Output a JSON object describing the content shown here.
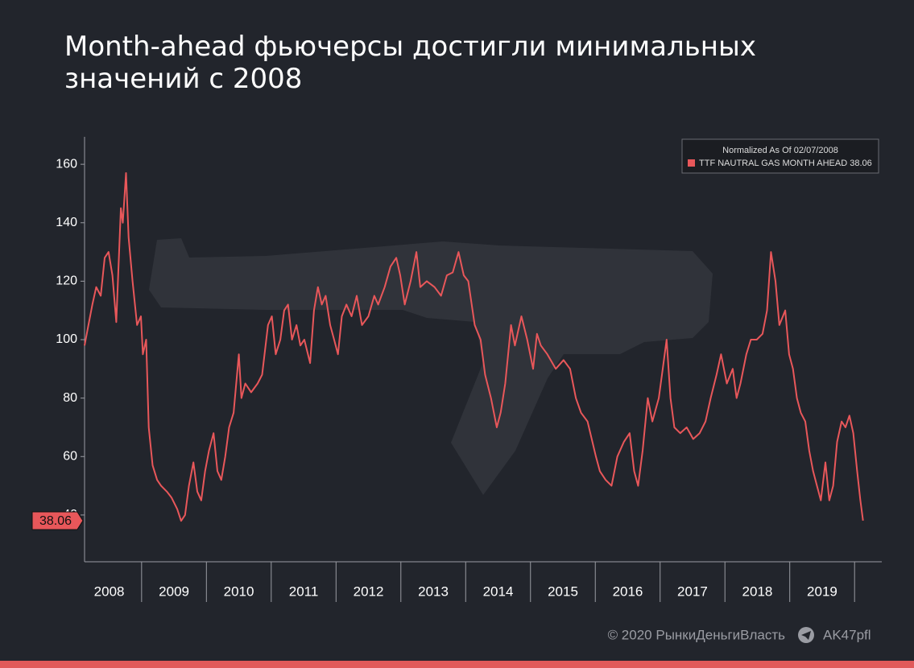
{
  "chart_data": {
    "type": "line",
    "title": "Month-ahead фьючерсы достигли минимальных значений с 2008",
    "legend_title": "Normalized As Of 02/07/2008",
    "legend": "upper right",
    "x": [
      2008.12,
      2008.18,
      2008.24,
      2008.3,
      2008.37,
      2008.43,
      2008.49,
      2008.55,
      2008.61,
      2008.68,
      2008.71,
      2008.76,
      2008.8,
      2008.86,
      2008.93,
      2008.99,
      2009.02,
      2009.07,
      2009.11,
      2009.17,
      2009.24,
      2009.3,
      2009.39,
      2009.46,
      2009.55,
      2009.61,
      2009.67,
      2009.73,
      2009.8,
      2009.86,
      2009.92,
      2009.98,
      2010.04,
      2010.11,
      2010.17,
      2010.23,
      2010.29,
      2010.35,
      2010.42,
      2010.5,
      2010.54,
      2010.6,
      2010.69,
      2010.79,
      2010.86,
      2010.95,
      2011.01,
      2011.07,
      2011.14,
      2011.2,
      2011.26,
      2011.32,
      2011.39,
      2011.45,
      2011.51,
      2011.6,
      2011.66,
      2011.72,
      2011.78,
      2011.84,
      2011.91,
      2011.97,
      2012.03,
      2012.09,
      2012.16,
      2012.24,
      2012.32,
      2012.4,
      2012.5,
      2012.59,
      2012.65,
      2012.75,
      2012.84,
      2012.93,
      2012.99,
      2013.06,
      2013.15,
      2013.24,
      2013.3,
      2013.4,
      2013.52,
      2013.62,
      2013.71,
      2013.8,
      2013.89,
      2013.97,
      2014.04,
      2014.14,
      2014.23,
      2014.3,
      2014.39,
      2014.48,
      2014.54,
      2014.61,
      2014.7,
      2014.76,
      2014.86,
      2014.95,
      2015.04,
      2015.1,
      2015.16,
      2015.26,
      2015.39,
      2015.51,
      2015.61,
      2015.7,
      2015.78,
      2015.88,
      2016.01,
      2016.07,
      2016.16,
      2016.25,
      2016.34,
      2016.44,
      2016.53,
      2016.6,
      2016.66,
      2016.73,
      2016.81,
      2016.88,
      2016.98,
      2017.04,
      2017.1,
      2017.16,
      2017.22,
      2017.31,
      2017.41,
      2017.51,
      2017.61,
      2017.7,
      2017.78,
      2017.87,
      2017.94,
      2018.03,
      2018.12,
      2018.18,
      2018.24,
      2018.33,
      2018.4,
      2018.49,
      2018.58,
      2018.65,
      2018.71,
      2018.78,
      2018.84,
      2018.93,
      2018.99,
      2019.05,
      2019.11,
      2019.17,
      2019.24,
      2019.3,
      2019.36,
      2019.42,
      2019.48,
      2019.55,
      2019.61,
      2019.67,
      2019.73,
      2019.8,
      2019.86,
      2019.92,
      2019.98,
      2020.04,
      2020.09,
      2020.13
    ],
    "series": [
      {
        "name": "TTF NAUTRAL GAS MONTH AHEAD 38.06",
        "color": "#e8575a",
        "values": [
          98,
          105,
          112,
          118,
          115,
          128,
          130,
          122,
          106,
          145,
          140,
          157,
          135,
          120,
          105,
          108,
          95,
          100,
          70,
          57,
          52,
          50,
          48,
          46,
          42,
          38,
          40,
          50,
          58,
          48,
          45,
          55,
          62,
          68,
          55,
          52,
          60,
          70,
          75,
          95,
          80,
          85,
          82,
          85,
          88,
          105,
          108,
          95,
          100,
          110,
          112,
          100,
          105,
          98,
          100,
          92,
          110,
          118,
          112,
          115,
          105,
          100,
          95,
          108,
          112,
          108,
          115,
          105,
          108,
          115,
          112,
          118,
          125,
          128,
          122,
          112,
          120,
          130,
          118,
          120,
          118,
          115,
          122,
          123,
          130,
          122,
          120,
          105,
          100,
          88,
          80,
          70,
          75,
          85,
          105,
          98,
          108,
          100,
          90,
          102,
          98,
          95,
          90,
          93,
          90,
          80,
          75,
          72,
          60,
          55,
          52,
          50,
          60,
          65,
          68,
          55,
          50,
          62,
          80,
          72,
          80,
          90,
          100,
          80,
          70,
          68,
          70,
          66,
          68,
          72,
          80,
          88,
          95,
          85,
          90,
          80,
          85,
          95,
          100,
          100,
          102,
          110,
          130,
          120,
          105,
          110,
          95,
          90,
          80,
          75,
          72,
          62,
          55,
          50,
          45,
          58,
          45,
          50,
          65,
          72,
          70,
          74,
          68,
          55,
          45,
          38.06
        ]
      }
    ],
    "xlim": [
      2008.12,
      2020.42
    ],
    "xticks": [
      {
        "value": 2008.5,
        "label": "2008"
      },
      {
        "value": 2009.5,
        "label": "2009"
      },
      {
        "value": 2010.5,
        "label": "2010"
      },
      {
        "value": 2011.5,
        "label": "2011"
      },
      {
        "value": 2012.5,
        "label": "2012"
      },
      {
        "value": 2013.5,
        "label": "2013"
      },
      {
        "value": 2014.5,
        "label": "2014"
      },
      {
        "value": 2015.5,
        "label": "2015"
      },
      {
        "value": 2016.5,
        "label": "2016"
      },
      {
        "value": 2017.5,
        "label": "2017"
      },
      {
        "value": 2018.5,
        "label": "2018"
      },
      {
        "value": 2019.5,
        "label": "2019"
      }
    ],
    "ylim": [
      24,
      169.4
    ],
    "yticks": [
      40,
      60,
      80,
      100,
      120,
      140,
      160
    ]
  },
  "footer": {
    "copyright": "© 2020  РынкиДеньгиВласть",
    "channel": "AK47pfl"
  }
}
